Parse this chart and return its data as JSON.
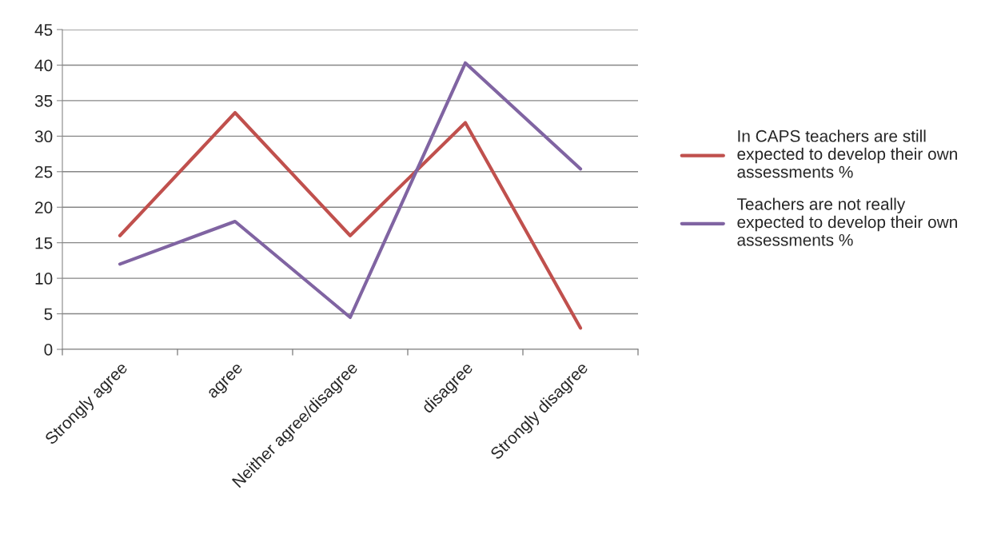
{
  "chart_data": {
    "type": "line",
    "categories": [
      "Strongly agree",
      "agree",
      "Neither agree/disagree",
      "disagree",
      "Strongly disagree"
    ],
    "series": [
      {
        "name": "In CAPS teachers are still expected to develop their own assessments %",
        "color": "#c0504d",
        "values": [
          16,
          33.3,
          16,
          31.9,
          3
        ]
      },
      {
        "name": "Teachers are not really expected to develop their own assessments %",
        "color": "#8064a2",
        "values": [
          12,
          18,
          4.5,
          40.3,
          25.4
        ]
      }
    ],
    "ylim": [
      0,
      45
    ],
    "yticks": [
      0,
      5,
      10,
      15,
      20,
      25,
      30,
      35,
      40,
      45
    ],
    "grid": "y",
    "legend": "right",
    "marker": "none",
    "line_style": "solid"
  }
}
